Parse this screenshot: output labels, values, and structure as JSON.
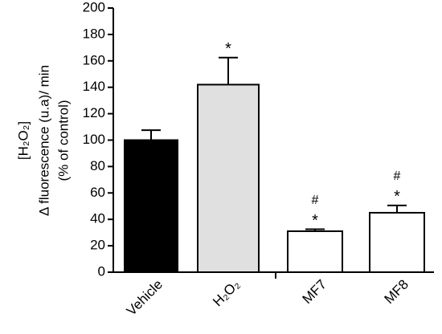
{
  "chart_data": {
    "type": "bar",
    "ylabel": [
      "[H₂O₂]",
      "Δ fluorescence (u.a)/ min",
      "(% of control)"
    ],
    "categories": [
      "Vehicle",
      "H₂O₂",
      "MF7",
      "MF8"
    ],
    "values": [
      100,
      142,
      31,
      45
    ],
    "errors": [
      7.5,
      20.5,
      1.5,
      5.5
    ],
    "colors": [
      "#000000",
      "#e0e0e0",
      "#ffffff",
      "#ffffff"
    ],
    "annotations": [
      null,
      [
        "*"
      ],
      [
        "#",
        "*"
      ],
      [
        "#",
        "*"
      ]
    ],
    "ylim": [
      0,
      200
    ],
    "yticks": [
      0,
      20,
      40,
      60,
      80,
      100,
      120,
      140,
      160,
      180,
      200
    ]
  }
}
